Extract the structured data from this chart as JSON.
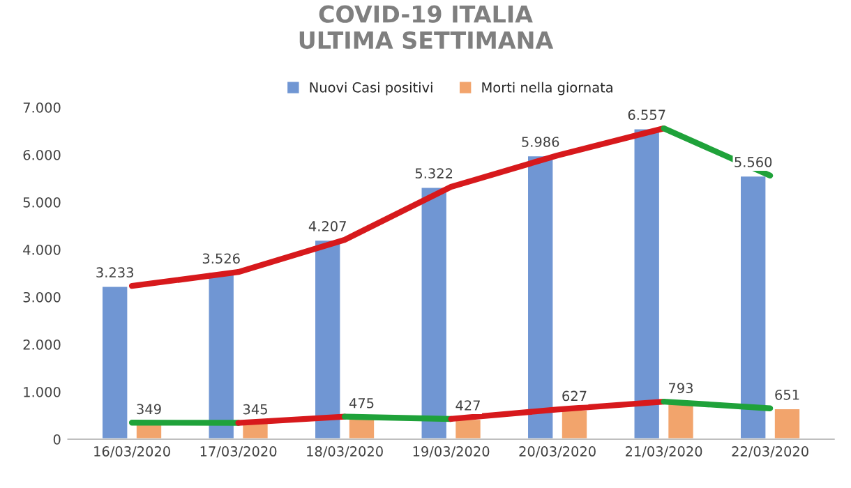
{
  "chart_data": {
    "type": "bar",
    "title": "COVID-19 ITALIA\nULTIMA SETTIMANA",
    "categories": [
      "16/03/2020",
      "17/03/2020",
      "18/03/2020",
      "19/03/2020",
      "20/03/2020",
      "21/03/2020",
      "22/03/2020"
    ],
    "series": [
      {
        "name": "Nuovi Casi positivi",
        "color": "#7096d3",
        "values": [
          3233,
          3526,
          4207,
          5322,
          5986,
          6557,
          5560
        ],
        "value_labels": [
          "3.233",
          "3.526",
          "4.207",
          "5.322",
          "5.986",
          "6.557",
          "5.560"
        ]
      },
      {
        "name": "Morti nella giornata",
        "color": "#f2a46c",
        "values": [
          349,
          345,
          475,
          427,
          627,
          793,
          651
        ],
        "value_labels": [
          "349",
          "345",
          "475",
          "427",
          "627",
          "793",
          "651"
        ]
      },
      {
        "type": "line",
        "color": "#d7191c",
        "values": [
          3233,
          3526,
          4207,
          5322,
          5986,
          6557,
          null
        ]
      },
      {
        "type": "line",
        "color": "#1fa23a",
        "values": [
          null,
          null,
          null,
          null,
          null,
          6557,
          5560
        ]
      },
      {
        "type": "line",
        "color": "#1fa23a",
        "values": [
          349,
          345,
          null,
          null,
          null,
          null,
          null
        ]
      },
      {
        "type": "line",
        "color": "#d7191c",
        "values": [
          null,
          345,
          475,
          null,
          null,
          null,
          null
        ]
      },
      {
        "type": "line",
        "color": "#1fa23a",
        "values": [
          null,
          null,
          475,
          427,
          null,
          null,
          null
        ]
      },
      {
        "type": "line",
        "color": "#d7191c",
        "values": [
          null,
          null,
          null,
          427,
          627,
          793,
          null
        ]
      },
      {
        "type": "line",
        "color": "#1fa23a",
        "values": [
          null,
          null,
          null,
          null,
          null,
          793,
          651
        ]
      }
    ],
    "ylim": [
      0,
      7000
    ],
    "yticks": [
      0,
      {
        "value": 1000,
        "label": "1.000"
      },
      {
        "value": 2000,
        "label": "2.000"
      },
      {
        "value": 3000,
        "label": "3.000"
      },
      {
        "value": 4000,
        "label": "4.000"
      },
      {
        "value": 5000,
        "label": "5.000"
      },
      {
        "value": 6000,
        "label": "6.000"
      },
      {
        "value": 7000,
        "label": "7.000"
      }
    ],
    "legend": "top",
    "grid": false
  }
}
